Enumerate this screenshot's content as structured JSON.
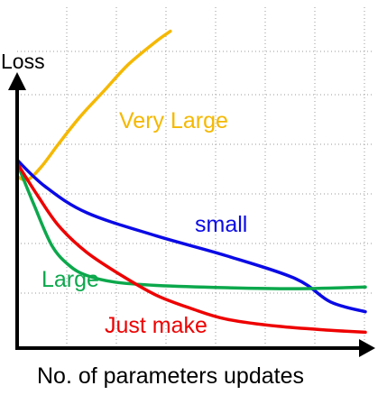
{
  "chart_data": {
    "type": "line",
    "ylabel": "Loss",
    "xlabel": "No. of parameters updates",
    "grid": true,
    "xlim": [
      0,
      100
    ],
    "ylim": [
      0,
      100
    ],
    "series": [
      {
        "name": "Very Large",
        "color": "#f5b800",
        "x": [
          0,
          3,
          7,
          12,
          18,
          25,
          32,
          40,
          44
        ],
        "y": [
          52,
          51,
          55,
          62,
          70,
          78,
          86,
          93,
          96
        ]
      },
      {
        "name": "small",
        "color": "#0a0ae6",
        "x": [
          0,
          8,
          20,
          40,
          60,
          80,
          90,
          100
        ],
        "y": [
          57,
          49,
          41,
          34,
          28,
          21,
          14,
          11
        ]
      },
      {
        "name": "Large",
        "color": "#0ca84c",
        "x": [
          0,
          5,
          10,
          15,
          20,
          28,
          40,
          60,
          80,
          100
        ],
        "y": [
          56,
          43,
          31,
          25,
          22,
          20,
          19,
          18.3,
          18,
          18.5
        ]
      },
      {
        "name": "Just make",
        "color": "#ee0000",
        "x": [
          0,
          6,
          12,
          20,
          30,
          40,
          50,
          60,
          75,
          90,
          100
        ],
        "y": [
          56,
          46,
          37,
          29,
          22,
          16,
          12,
          8.8,
          6.6,
          5.4,
          4.8
        ]
      }
    ]
  }
}
